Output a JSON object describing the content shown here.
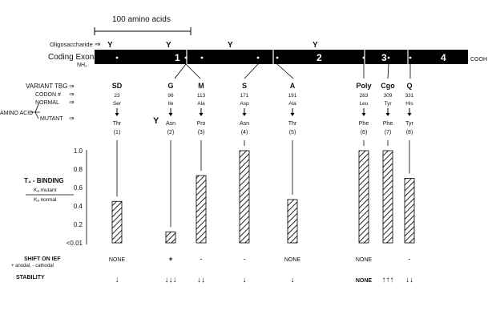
{
  "scale_bar_label": "100 amino acids",
  "row_labels": {
    "oligosaccharide": "Oligosaccharide",
    "coding_exons": "Coding Exons",
    "nh2": "NH₂",
    "cooh": "COOH",
    "variant_tbg": "VARIANT TBG",
    "codon": "CODON #",
    "normal": "NORMAL",
    "amino_acid": "AMINO ACID",
    "mutant": "MUTANT",
    "binding_title": "T₄ - BINDING",
    "ka_mutant": "Kₐ mutant",
    "ka_normal": "Kₐ normal",
    "shift_line1": "SHIFT ON IEF",
    "shift_line2": "+ anodal, - cathodal",
    "stability": "STABILITY"
  },
  "arrow_glyph": "⇒",
  "glyco_glyph": "Y",
  "exon_numbers": [
    "1",
    "2",
    "3",
    "4"
  ],
  "y_ticks": [
    "1.0",
    "0.8",
    "0.6",
    "0.4",
    "0.2",
    "<0.01"
  ],
  "y_range": [
    0,
    1.0
  ],
  "variants": [
    {
      "name": "SD",
      "codon": "23",
      "normal": "Ser",
      "mutant": "Thr",
      "index": "(1)",
      "binding": 0.45,
      "shift": "NONE",
      "stability": "↓"
    },
    {
      "name": "G",
      "codon": "96",
      "normal": "Ile",
      "mutant": "Asn",
      "index": "(2)",
      "binding": 0.12,
      "shift": "+",
      "stability": "↓↓↓"
    },
    {
      "name": "M",
      "codon": "113",
      "normal": "Ala",
      "mutant": "Pro",
      "index": "(3)",
      "binding": 0.73,
      "shift": "-",
      "stability": "↓↓"
    },
    {
      "name": "S",
      "codon": "171",
      "normal": "Asp",
      "mutant": "Asn",
      "index": "(4)",
      "binding": 1.0,
      "shift": "-",
      "stability": "↓"
    },
    {
      "name": "A",
      "codon": "191",
      "normal": "Ala",
      "mutant": "Thr",
      "index": "(5)",
      "binding": 0.47,
      "shift": "NONE",
      "stability": "↓"
    },
    {
      "name": "Poly",
      "codon": "283",
      "normal": "Leu",
      "mutant": "Phe",
      "index": "(6)",
      "binding": 1.0,
      "shift": "NONE",
      "stability": "NONE"
    },
    {
      "name": "Cgo",
      "codon": "309",
      "normal": "Tyr",
      "mutant": "Phe",
      "index": "(7)",
      "binding": 1.0,
      "shift": "",
      "stability": "↑↑↑"
    },
    {
      "name": "Q",
      "codon": "331",
      "normal": "His",
      "mutant": "Tyr",
      "index": "(8)",
      "binding": 0.7,
      "shift": "-",
      "stability": "↓↓"
    }
  ]
}
